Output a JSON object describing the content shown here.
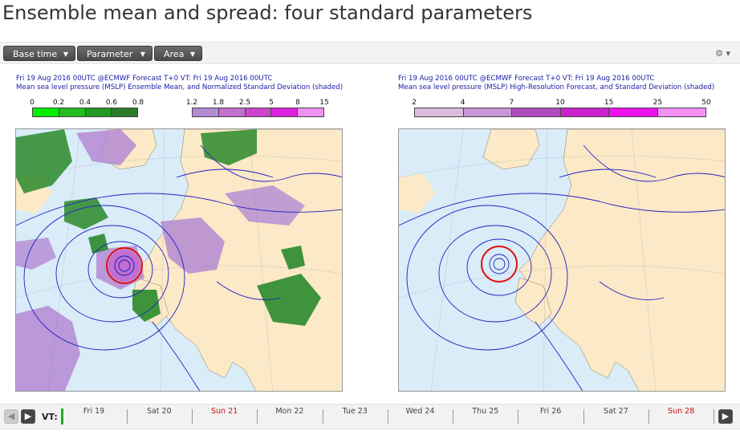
{
  "page": {
    "title": "Ensemble mean and spread: four standard parameters"
  },
  "toolbar": {
    "base_time_label": "Base time",
    "parameter_label": "Parameter",
    "area_label": "Area",
    "settings_icon": "gear-icon"
  },
  "panels": [
    {
      "header_line1": "Fri 19 Aug 2016 00UTC @ECMWF Forecast T+0 VT: Fri 19 Aug 2016 00UTC",
      "header_line2": "Mean sea level pressure (MSLP) Ensemble Mean, and Normalized Standard Deviation (shaded)",
      "legend_green": {
        "labels": [
          "0",
          "0.2",
          "0.4",
          "0.6",
          "0.8"
        ],
        "colors": [
          "#00ee00",
          "#22bb22",
          "#229922",
          "#2a7a2a"
        ]
      },
      "legend_purple": {
        "labels": [
          "1.2",
          "1.8",
          "2.5",
          "5",
          "8",
          "15"
        ],
        "colors": [
          "#b48ad4",
          "#c070d0",
          "#cc44cc",
          "#dd22dd",
          "#f090f0"
        ]
      }
    },
    {
      "header_line1": "Fri 19 Aug 2016 00UTC @ECMWF Forecast T+0 VT: Fri 19 Aug 2016 00UTC",
      "header_line2": "Mean sea level pressure (MSLP) High-Resolution Forecast, and Standard Deviation (shaded)",
      "legend": {
        "labels": [
          "2",
          "4",
          "7",
          "10",
          "15",
          "25",
          "50"
        ],
        "colors": [
          "#dcbcdc",
          "#c896d6",
          "#b04cc0",
          "#cc22cc",
          "#ee11ee",
          "#f590f5"
        ]
      }
    }
  ],
  "timeline": {
    "vt_label": "VT:",
    "days": [
      {
        "label": "Fri 19",
        "weekend": false
      },
      {
        "label": "Sat 20",
        "weekend": false
      },
      {
        "label": "Sun 21",
        "weekend": true
      },
      {
        "label": "Mon 22",
        "weekend": false
      },
      {
        "label": "Tue 23",
        "weekend": false
      },
      {
        "label": "Wed 24",
        "weekend": false
      },
      {
        "label": "Thu 25",
        "weekend": false
      },
      {
        "label": "Fri 26",
        "weekend": false
      },
      {
        "label": "Sat 27",
        "weekend": false
      },
      {
        "label": "Sun 28",
        "weekend": true
      }
    ],
    "prev_icon": "chevron-left-icon",
    "next_icon": "chevron-right-icon",
    "play_icon": "play-icon"
  }
}
